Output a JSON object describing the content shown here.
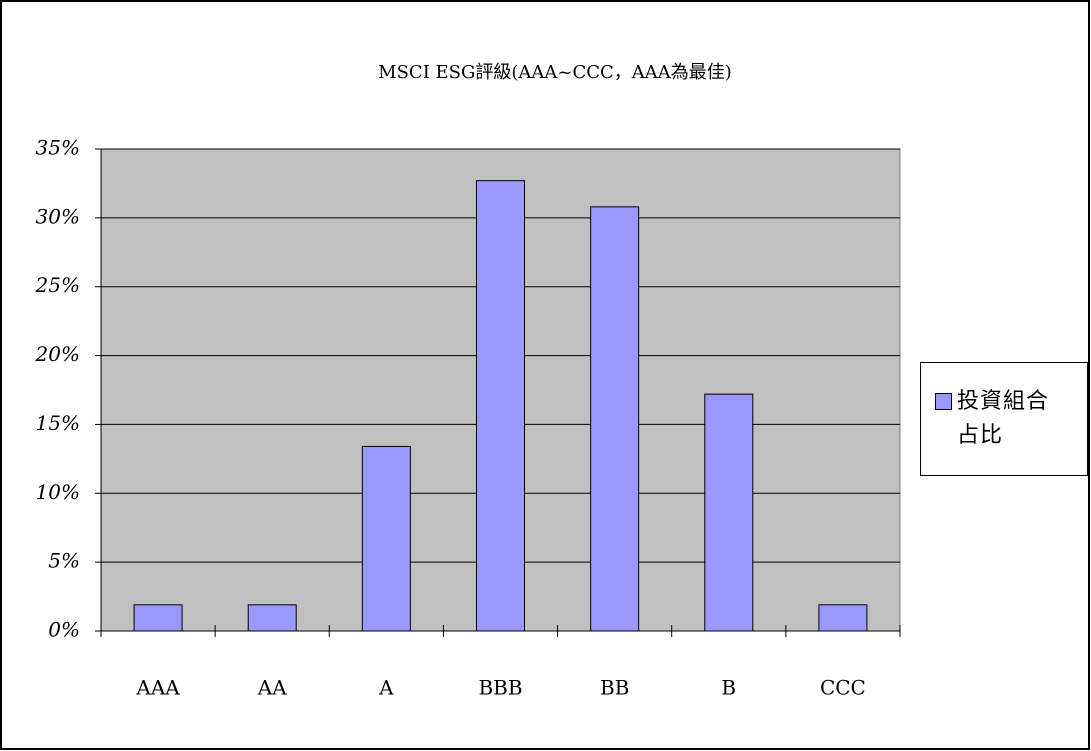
{
  "chart_data": {
    "type": "bar",
    "title": "MSCI ESG評級(AAA~CCC，AAA為最佳)",
    "categories": [
      "AAA",
      "AA",
      "A",
      "BBB",
      "BB",
      "B",
      "CCC"
    ],
    "series": [
      {
        "name": "投資組合占比",
        "color": "#9999ff",
        "values": [
          1.9,
          1.9,
          13.4,
          32.7,
          30.8,
          17.2,
          1.9
        ]
      }
    ],
    "ylim": [
      0,
      35
    ],
    "yticks": [
      {
        "value": 0,
        "label": "0%"
      },
      {
        "value": 5,
        "label": "5%"
      },
      {
        "value": 10,
        "label": "10%"
      },
      {
        "value": 15,
        "label": "15%"
      },
      {
        "value": 20,
        "label": "20%"
      },
      {
        "value": 25,
        "label": "25%"
      },
      {
        "value": 30,
        "label": "30%"
      },
      {
        "value": 35,
        "label": "35%"
      }
    ],
    "grid": true,
    "plot_background": "#c0c0c0",
    "legend": "right"
  }
}
